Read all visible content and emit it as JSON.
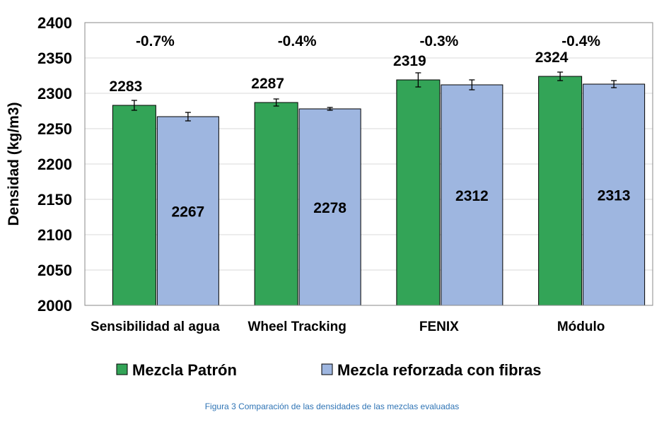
{
  "chart_data": {
    "type": "bar",
    "categories": [
      "Sensibilidad al agua",
      "Wheel Tracking",
      "FENIX",
      "Módulo"
    ],
    "series": [
      {
        "name": "Mezcla Patrón",
        "color": "#33a457",
        "values": [
          2283,
          2287,
          2319,
          2324
        ],
        "error": [
          7,
          5,
          10,
          6
        ],
        "labels": [
          "2283",
          "2287",
          "2319",
          "2324"
        ]
      },
      {
        "name": "Mezcla reforzada con fibras",
        "color": "#9eb6e0",
        "values": [
          2267,
          2278,
          2312,
          2313
        ],
        "error": [
          6,
          2,
          7,
          5
        ],
        "labels": [
          "2267",
          "2278",
          "2312",
          "2313"
        ]
      }
    ],
    "annotations": [
      "-0.7%",
      "-0.4%",
      "-0.3%",
      "-0.4%"
    ],
    "ylabel": "Densidad (kg/m3)",
    "xlabel": "",
    "ylim": [
      2000,
      2400
    ],
    "yticks": [
      2000,
      2050,
      2100,
      2150,
      2200,
      2250,
      2300,
      2350,
      2400
    ],
    "grid": true,
    "legend": "bottom"
  },
  "caption": "Figura 3 Comparación de las densidades de las mezclas evaluadas"
}
